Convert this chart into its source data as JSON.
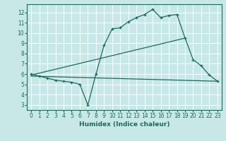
{
  "xlabel": "Humidex (Indice chaleur)",
  "bg_color": "#c8e8e8",
  "line_color": "#1a6b5a",
  "grid_color": "#ffffff",
  "xlim": [
    -0.5,
    23.5
  ],
  "ylim": [
    2.5,
    12.8
  ],
  "xticks": [
    0,
    1,
    2,
    3,
    4,
    5,
    6,
    7,
    8,
    9,
    10,
    11,
    12,
    13,
    14,
    15,
    16,
    17,
    18,
    19,
    20,
    21,
    22,
    23
  ],
  "yticks": [
    3,
    4,
    5,
    6,
    7,
    8,
    9,
    10,
    11,
    12
  ],
  "line1_x": [
    0,
    1,
    2,
    3,
    4,
    5,
    6,
    7,
    8,
    9,
    10,
    11,
    12,
    13,
    14,
    15,
    16,
    17,
    18,
    19,
    20,
    21,
    22,
    23
  ],
  "line1_y": [
    6.0,
    5.8,
    5.6,
    5.4,
    5.3,
    5.2,
    5.0,
    3.0,
    6.0,
    8.8,
    10.4,
    10.5,
    11.1,
    11.5,
    11.8,
    12.3,
    11.5,
    11.7,
    11.8,
    9.5,
    7.4,
    6.8,
    5.9,
    5.3
  ],
  "line2_x": [
    0,
    19
  ],
  "line2_y": [
    5.9,
    9.5
  ],
  "line3_x": [
    0,
    23
  ],
  "line3_y": [
    5.8,
    5.3
  ]
}
